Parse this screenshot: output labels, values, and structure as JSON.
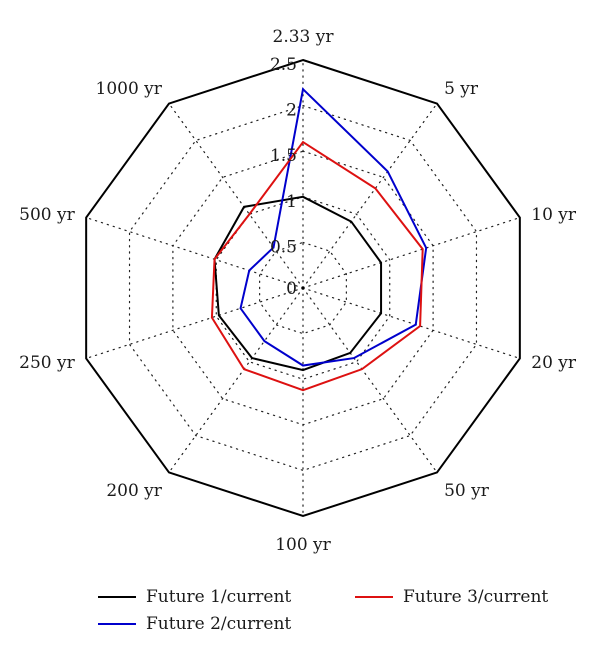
{
  "chart_data": {
    "type": "radar",
    "title": "",
    "categories": [
      "2.33 yr",
      "5 yr",
      "10 yr",
      "20 yr",
      "50 yr",
      "100 yr",
      "200 yr",
      "250 yr",
      "500 yr",
      "1000 yr"
    ],
    "radial_range": [
      0,
      2.5
    ],
    "radial_ticks": [
      0,
      0.5,
      1,
      1.5,
      2,
      2.5
    ],
    "radial_tick_labels": [
      "0",
      "0.5",
      "1",
      "1.5",
      "2",
      "2.5"
    ],
    "grid": true,
    "legend_position": "bottom",
    "series": [
      {
        "name": "Future 1/current",
        "color": "#000000",
        "values": [
          1.0,
          0.9,
          0.9,
          0.9,
          0.88,
          0.9,
          0.95,
          0.97,
          1.02,
          1.1
        ]
      },
      {
        "name": "Future 2/current",
        "color": "#0000cc",
        "values": [
          2.18,
          1.58,
          1.42,
          1.3,
          0.95,
          0.85,
          0.72,
          0.72,
          0.62,
          0.55
        ]
      },
      {
        "name": "Future 3/current",
        "color": "#dd1111",
        "values": [
          1.6,
          1.35,
          1.38,
          1.35,
          1.1,
          1.12,
          1.1,
          1.05,
          1.02,
          1.0
        ]
      }
    ]
  }
}
